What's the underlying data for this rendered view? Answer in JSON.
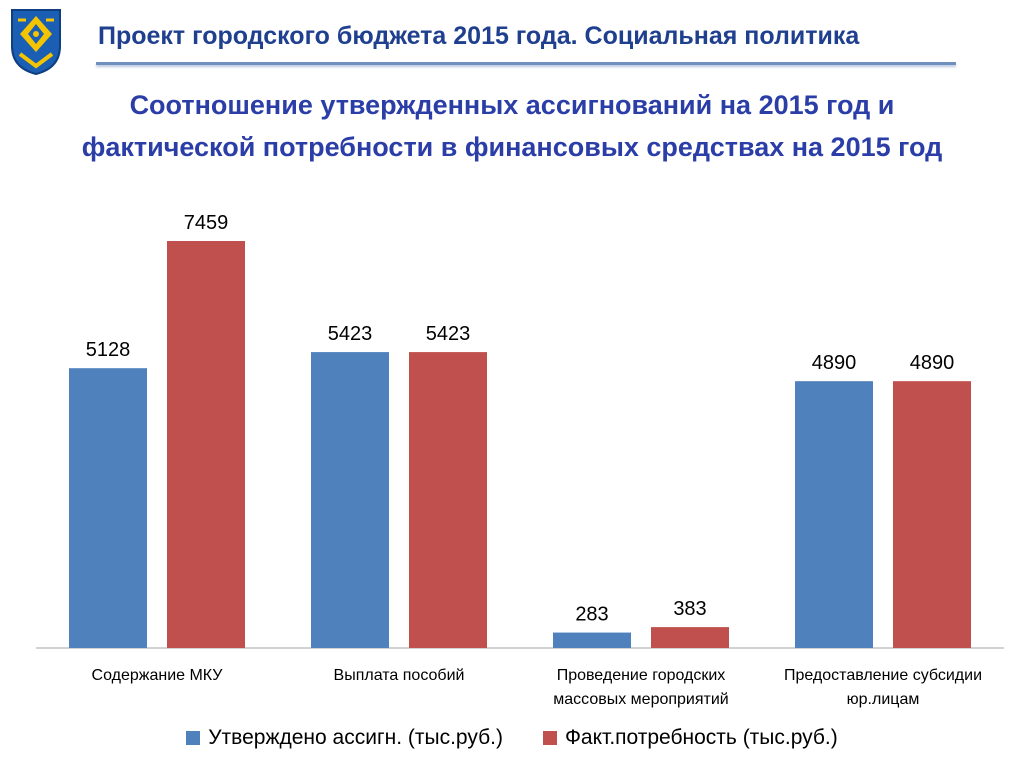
{
  "header": {
    "title": "Проект городского бюджета 2015 года. Социальная политика"
  },
  "subtitle": {
    "line1": "Соотношение утвержденных ассигнований на 2015 год и",
    "line2": "фактической потребности в финансовых средствах на 2015 год"
  },
  "colors": {
    "series1": "#4f81bd",
    "series2": "#c0504d",
    "header_text": "#1f3f8f",
    "subtitle_text": "#2b3ea8"
  },
  "logo": {
    "icon": "city-coat-of-arms-icon"
  },
  "chart_data": {
    "type": "bar",
    "categories": [
      "Содержание МКУ",
      "Выплата пособий",
      "Проведение городских массовых мероприятий",
      "Предоставление субсидии юр.лицам"
    ],
    "category_lines": [
      [
        "Содержание МКУ"
      ],
      [
        "Выплата пособий"
      ],
      [
        "Проведение городских",
        "массовых мероприятий"
      ],
      [
        "Предоставление субсидии",
        "юр.лицам"
      ]
    ],
    "series": [
      {
        "name": "Утверждено ассигн. (тыс.руб.)",
        "values": [
          5128,
          5423,
          283,
          4890
        ]
      },
      {
        "name": "Факт.потребность (тыс.руб.)",
        "values": [
          7459,
          5423,
          383,
          4890
        ]
      }
    ],
    "data_labels": true,
    "grid": false,
    "ylim": [
      0,
      7459
    ],
    "legend_position": "bottom"
  }
}
